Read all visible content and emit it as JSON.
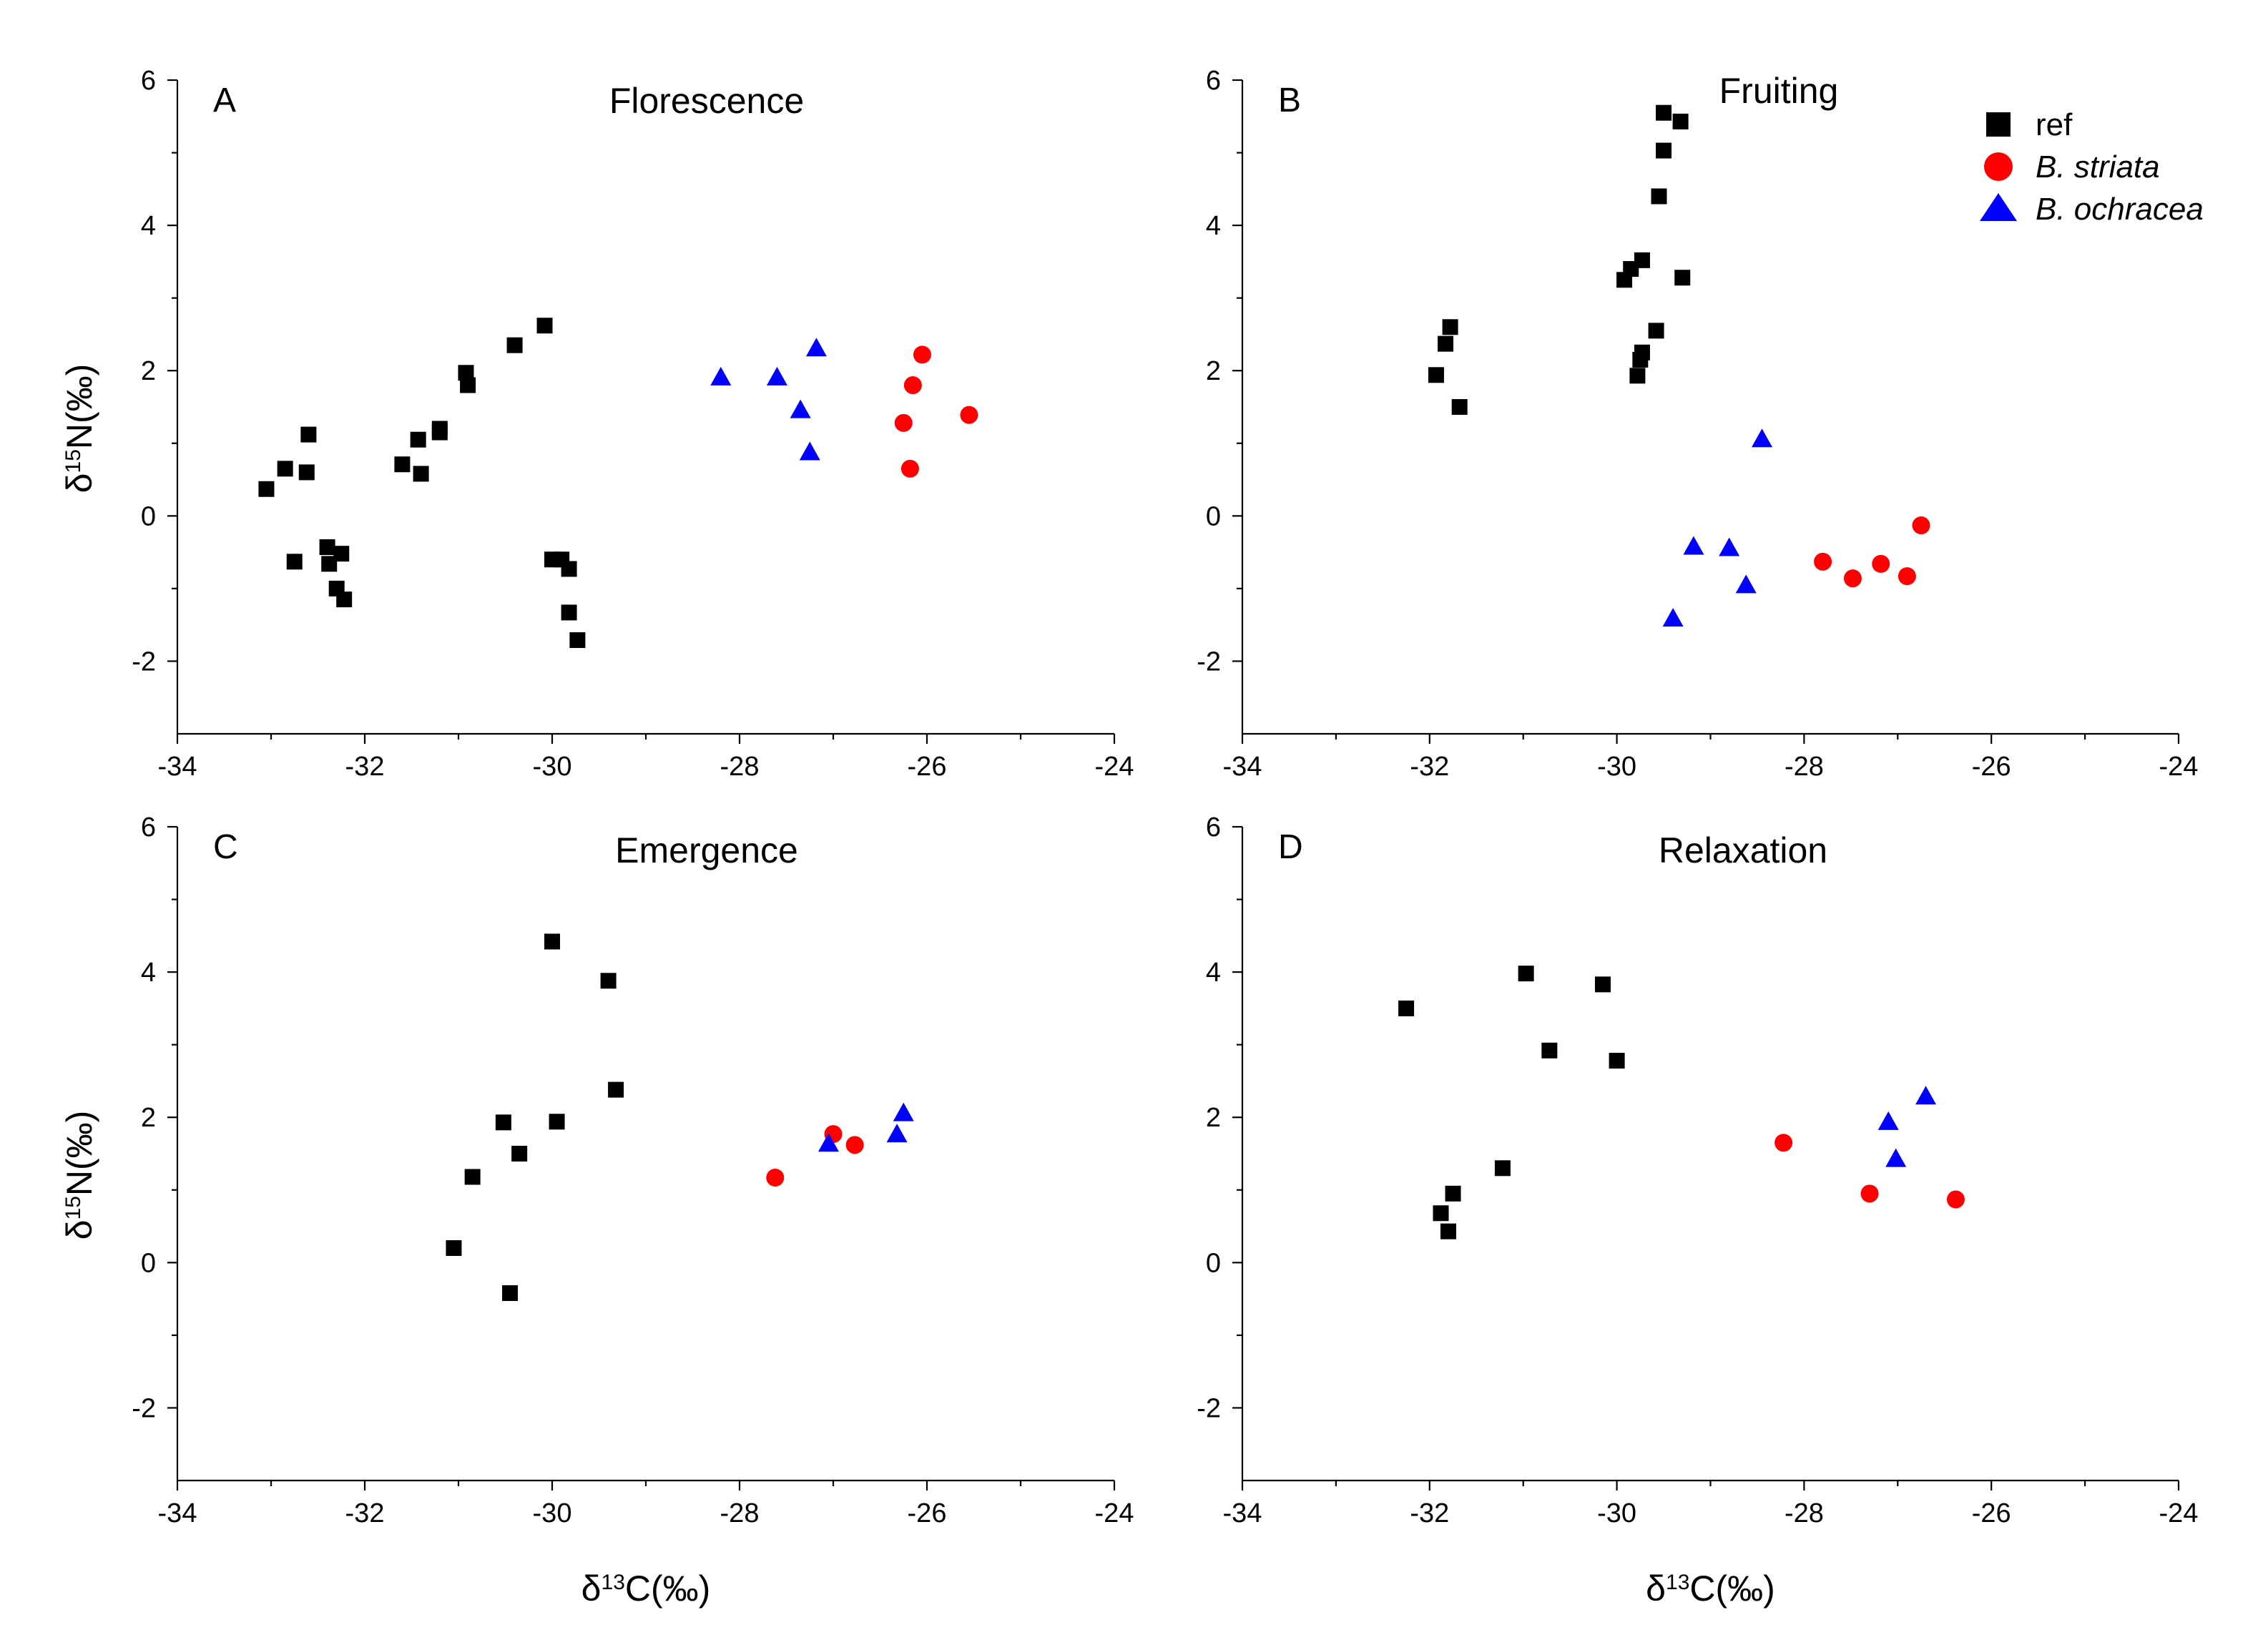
{
  "chart_data": [
    {
      "type": "scatter",
      "panel": "A",
      "title": "Florescence",
      "xlabel": "δ13C(‰)",
      "ylabel": "δ15N(‰)",
      "xlim": [
        -34,
        -24
      ],
      "ylim": [
        -3,
        6
      ],
      "xticks": [
        -34,
        -32,
        -30,
        -28,
        -26,
        -24
      ],
      "yticks": [
        -2,
        0,
        2,
        4,
        6
      ],
      "grid": false,
      "series": [
        {
          "name": "ref",
          "marker": "square",
          "color": "#000000",
          "points": [
            [
              -33.05,
              0.37
            ],
            [
              -32.85,
              0.65
            ],
            [
              -32.6,
              1.12
            ],
            [
              -32.62,
              0.6
            ],
            [
              -32.75,
              -0.63
            ],
            [
              -32.4,
              -0.43
            ],
            [
              -32.38,
              -0.66
            ],
            [
              -32.25,
              -0.52
            ],
            [
              -32.3,
              -1.0
            ],
            [
              -32.22,
              -1.15
            ],
            [
              -31.6,
              0.71
            ],
            [
              -31.43,
              1.05
            ],
            [
              -31.4,
              0.58
            ],
            [
              -31.2,
              1.2
            ],
            [
              -31.2,
              1.15
            ],
            [
              -30.92,
              1.97
            ],
            [
              -30.9,
              1.8
            ],
            [
              -30.4,
              2.35
            ],
            [
              -30.08,
              2.62
            ],
            [
              -30.0,
              -0.6
            ],
            [
              -29.9,
              -0.6
            ],
            [
              -29.82,
              -0.73
            ],
            [
              -29.82,
              -1.33
            ],
            [
              -29.73,
              -1.71
            ]
          ]
        },
        {
          "name": "B. striata",
          "marker": "circle",
          "color": "#ff0000",
          "points": [
            [
              -26.05,
              2.22
            ],
            [
              -26.15,
              1.8
            ],
            [
              -26.25,
              1.28
            ],
            [
              -26.18,
              0.65
            ],
            [
              -25.55,
              1.39
            ]
          ]
        },
        {
          "name": "B. ochracea",
          "marker": "triangle",
          "color": "#0000ff",
          "points": [
            [
              -28.2,
              1.9
            ],
            [
              -27.6,
              1.9
            ],
            [
              -27.18,
              2.3
            ],
            [
              -27.35,
              1.45
            ],
            [
              -27.25,
              0.87
            ]
          ]
        }
      ]
    },
    {
      "type": "scatter",
      "panel": "B",
      "title": "Fruiting",
      "xlabel": "",
      "ylabel": "",
      "xlim": [
        -34,
        -24
      ],
      "ylim": [
        -3,
        6
      ],
      "xticks": [
        -34,
        -32,
        -30,
        -28,
        -26,
        -24
      ],
      "yticks": [
        -2,
        0,
        2,
        4,
        6
      ],
      "grid": false,
      "series": [
        {
          "name": "ref",
          "marker": "square",
          "color": "#000000",
          "points": [
            [
              -29.5,
              5.55
            ],
            [
              -29.32,
              5.43
            ],
            [
              -29.5,
              5.03
            ],
            [
              -29.55,
              4.4
            ],
            [
              -29.73,
              3.52
            ],
            [
              -29.85,
              3.4
            ],
            [
              -29.92,
              3.25
            ],
            [
              -29.3,
              3.28
            ],
            [
              -29.58,
              2.55
            ],
            [
              -29.73,
              2.25
            ],
            [
              -29.75,
              2.15
            ],
            [
              -29.78,
              1.93
            ],
            [
              -31.78,
              2.6
            ],
            [
              -31.83,
              2.37
            ],
            [
              -31.93,
              1.94
            ],
            [
              -31.68,
              1.5
            ]
          ]
        },
        {
          "name": "B. striata",
          "marker": "circle",
          "color": "#ff0000",
          "points": [
            [
              -27.8,
              -0.63
            ],
            [
              -27.48,
              -0.86
            ],
            [
              -27.18,
              -0.66
            ],
            [
              -26.9,
              -0.83
            ],
            [
              -26.75,
              -0.13
            ]
          ]
        },
        {
          "name": "B. ochracea",
          "marker": "triangle",
          "color": "#0000ff",
          "points": [
            [
              -28.45,
              1.05
            ],
            [
              -29.18,
              -0.43
            ],
            [
              -28.8,
              -0.45
            ],
            [
              -28.62,
              -0.96
            ],
            [
              -29.4,
              -1.42
            ]
          ]
        }
      ],
      "legend": {
        "placement": "top-right",
        "entries": [
          "ref",
          "B. striata",
          "B. ochracea"
        ]
      }
    },
    {
      "type": "scatter",
      "panel": "C",
      "title": "Emergence",
      "xlabel": "δ13C(‰)",
      "ylabel": "δ15N(‰)",
      "xlim": [
        -34,
        -24
      ],
      "ylim": [
        -3,
        6
      ],
      "xticks": [
        -34,
        -32,
        -30,
        -28,
        -26,
        -24
      ],
      "yticks": [
        -2,
        0,
        2,
        4,
        6
      ],
      "grid": false,
      "series": [
        {
          "name": "ref",
          "marker": "square",
          "color": "#000000",
          "points": [
            [
              -30.0,
              4.42
            ],
            [
              -29.4,
              3.88
            ],
            [
              -29.32,
              2.38
            ],
            [
              -30.52,
              1.93
            ],
            [
              -29.95,
              1.94
            ],
            [
              -30.35,
              1.5
            ],
            [
              -30.85,
              1.18
            ],
            [
              -31.05,
              0.2
            ],
            [
              -30.45,
              -0.42
            ]
          ]
        },
        {
          "name": "B. striata",
          "marker": "circle",
          "color": "#ff0000",
          "points": [
            [
              -27.62,
              1.17
            ],
            [
              -27.0,
              1.77
            ],
            [
              -26.77,
              1.62
            ]
          ]
        },
        {
          "name": "B. ochracea",
          "marker": "triangle",
          "color": "#0000ff",
          "points": [
            [
              -27.05,
              1.63
            ],
            [
              -26.32,
              1.76
            ],
            [
              -26.25,
              2.05
            ]
          ]
        }
      ]
    },
    {
      "type": "scatter",
      "panel": "D",
      "title": "Relaxation",
      "xlabel": "δ13C(‰)",
      "ylabel": "",
      "xlim": [
        -34,
        -24
      ],
      "ylim": [
        -3,
        6
      ],
      "xticks": [
        -34,
        -32,
        -30,
        -28,
        -26,
        -24
      ],
      "yticks": [
        -2,
        0,
        2,
        4,
        6
      ],
      "grid": false,
      "series": [
        {
          "name": "ref",
          "marker": "square",
          "color": "#000000",
          "points": [
            [
              -32.25,
              3.5
            ],
            [
              -30.97,
              3.98
            ],
            [
              -30.15,
              3.83
            ],
            [
              -30.72,
              2.92
            ],
            [
              -30.0,
              2.78
            ],
            [
              -31.22,
              1.3
            ],
            [
              -31.75,
              0.95
            ],
            [
              -31.88,
              0.68
            ],
            [
              -31.8,
              0.43
            ]
          ]
        },
        {
          "name": "B. striata",
          "marker": "circle",
          "color": "#ff0000",
          "points": [
            [
              -28.22,
              1.65
            ],
            [
              -27.3,
              0.95
            ],
            [
              -26.38,
              0.87
            ]
          ]
        },
        {
          "name": "B. ochracea",
          "marker": "triangle",
          "color": "#0000ff",
          "points": [
            [
              -27.1,
              1.93
            ],
            [
              -26.7,
              2.28
            ],
            [
              -27.02,
              1.42
            ]
          ]
        }
      ]
    }
  ]
}
